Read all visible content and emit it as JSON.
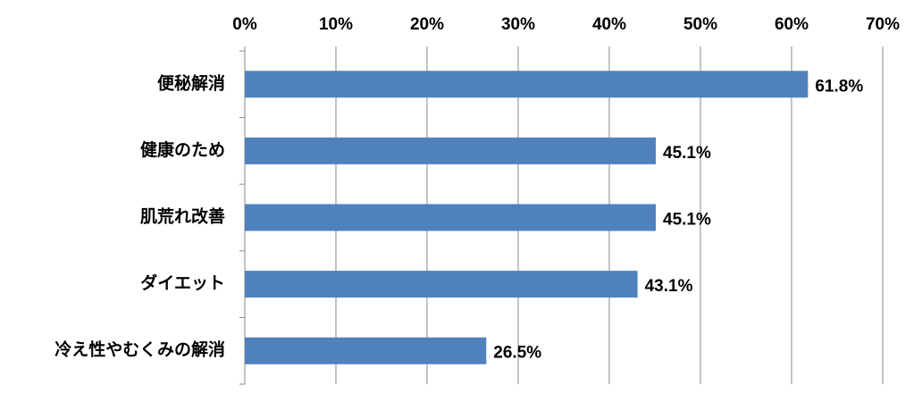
{
  "chart_data": {
    "type": "bar",
    "orientation": "horizontal",
    "categories": [
      "便秘解消",
      "健康のため",
      "肌荒れ改善",
      "ダイエット",
      "冷え性やむくみの解消"
    ],
    "values": [
      61.8,
      45.1,
      45.1,
      43.1,
      26.5
    ],
    "value_labels": [
      "61.8%",
      "45.1%",
      "45.1%",
      "43.1%",
      "26.5%"
    ],
    "color": "#4f81bd",
    "xlim": [
      0,
      70
    ],
    "xticks": [
      {
        "value": 0,
        "label": "0%"
      },
      {
        "value": 10,
        "label": "10%"
      },
      {
        "value": 20,
        "label": "20%"
      },
      {
        "value": 30,
        "label": "30%"
      },
      {
        "value": 40,
        "label": "40%"
      },
      {
        "value": 50,
        "label": "50%"
      },
      {
        "value": 60,
        "label": "60%"
      },
      {
        "value": 70,
        "label": "70%"
      }
    ],
    "grid": true
  }
}
